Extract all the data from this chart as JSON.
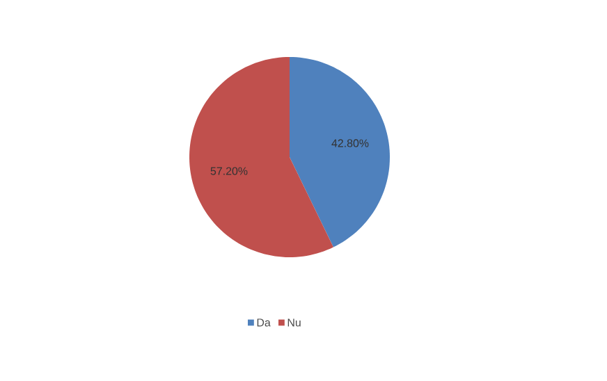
{
  "chart_data": {
    "type": "pie",
    "categories": [
      "Da",
      "Nu"
    ],
    "values": [
      42.8,
      57.2
    ],
    "colors": [
      "#4f81bd",
      "#c0504d"
    ],
    "value_labels": [
      "42.80%",
      "57.20%"
    ],
    "legend": "bottom"
  }
}
